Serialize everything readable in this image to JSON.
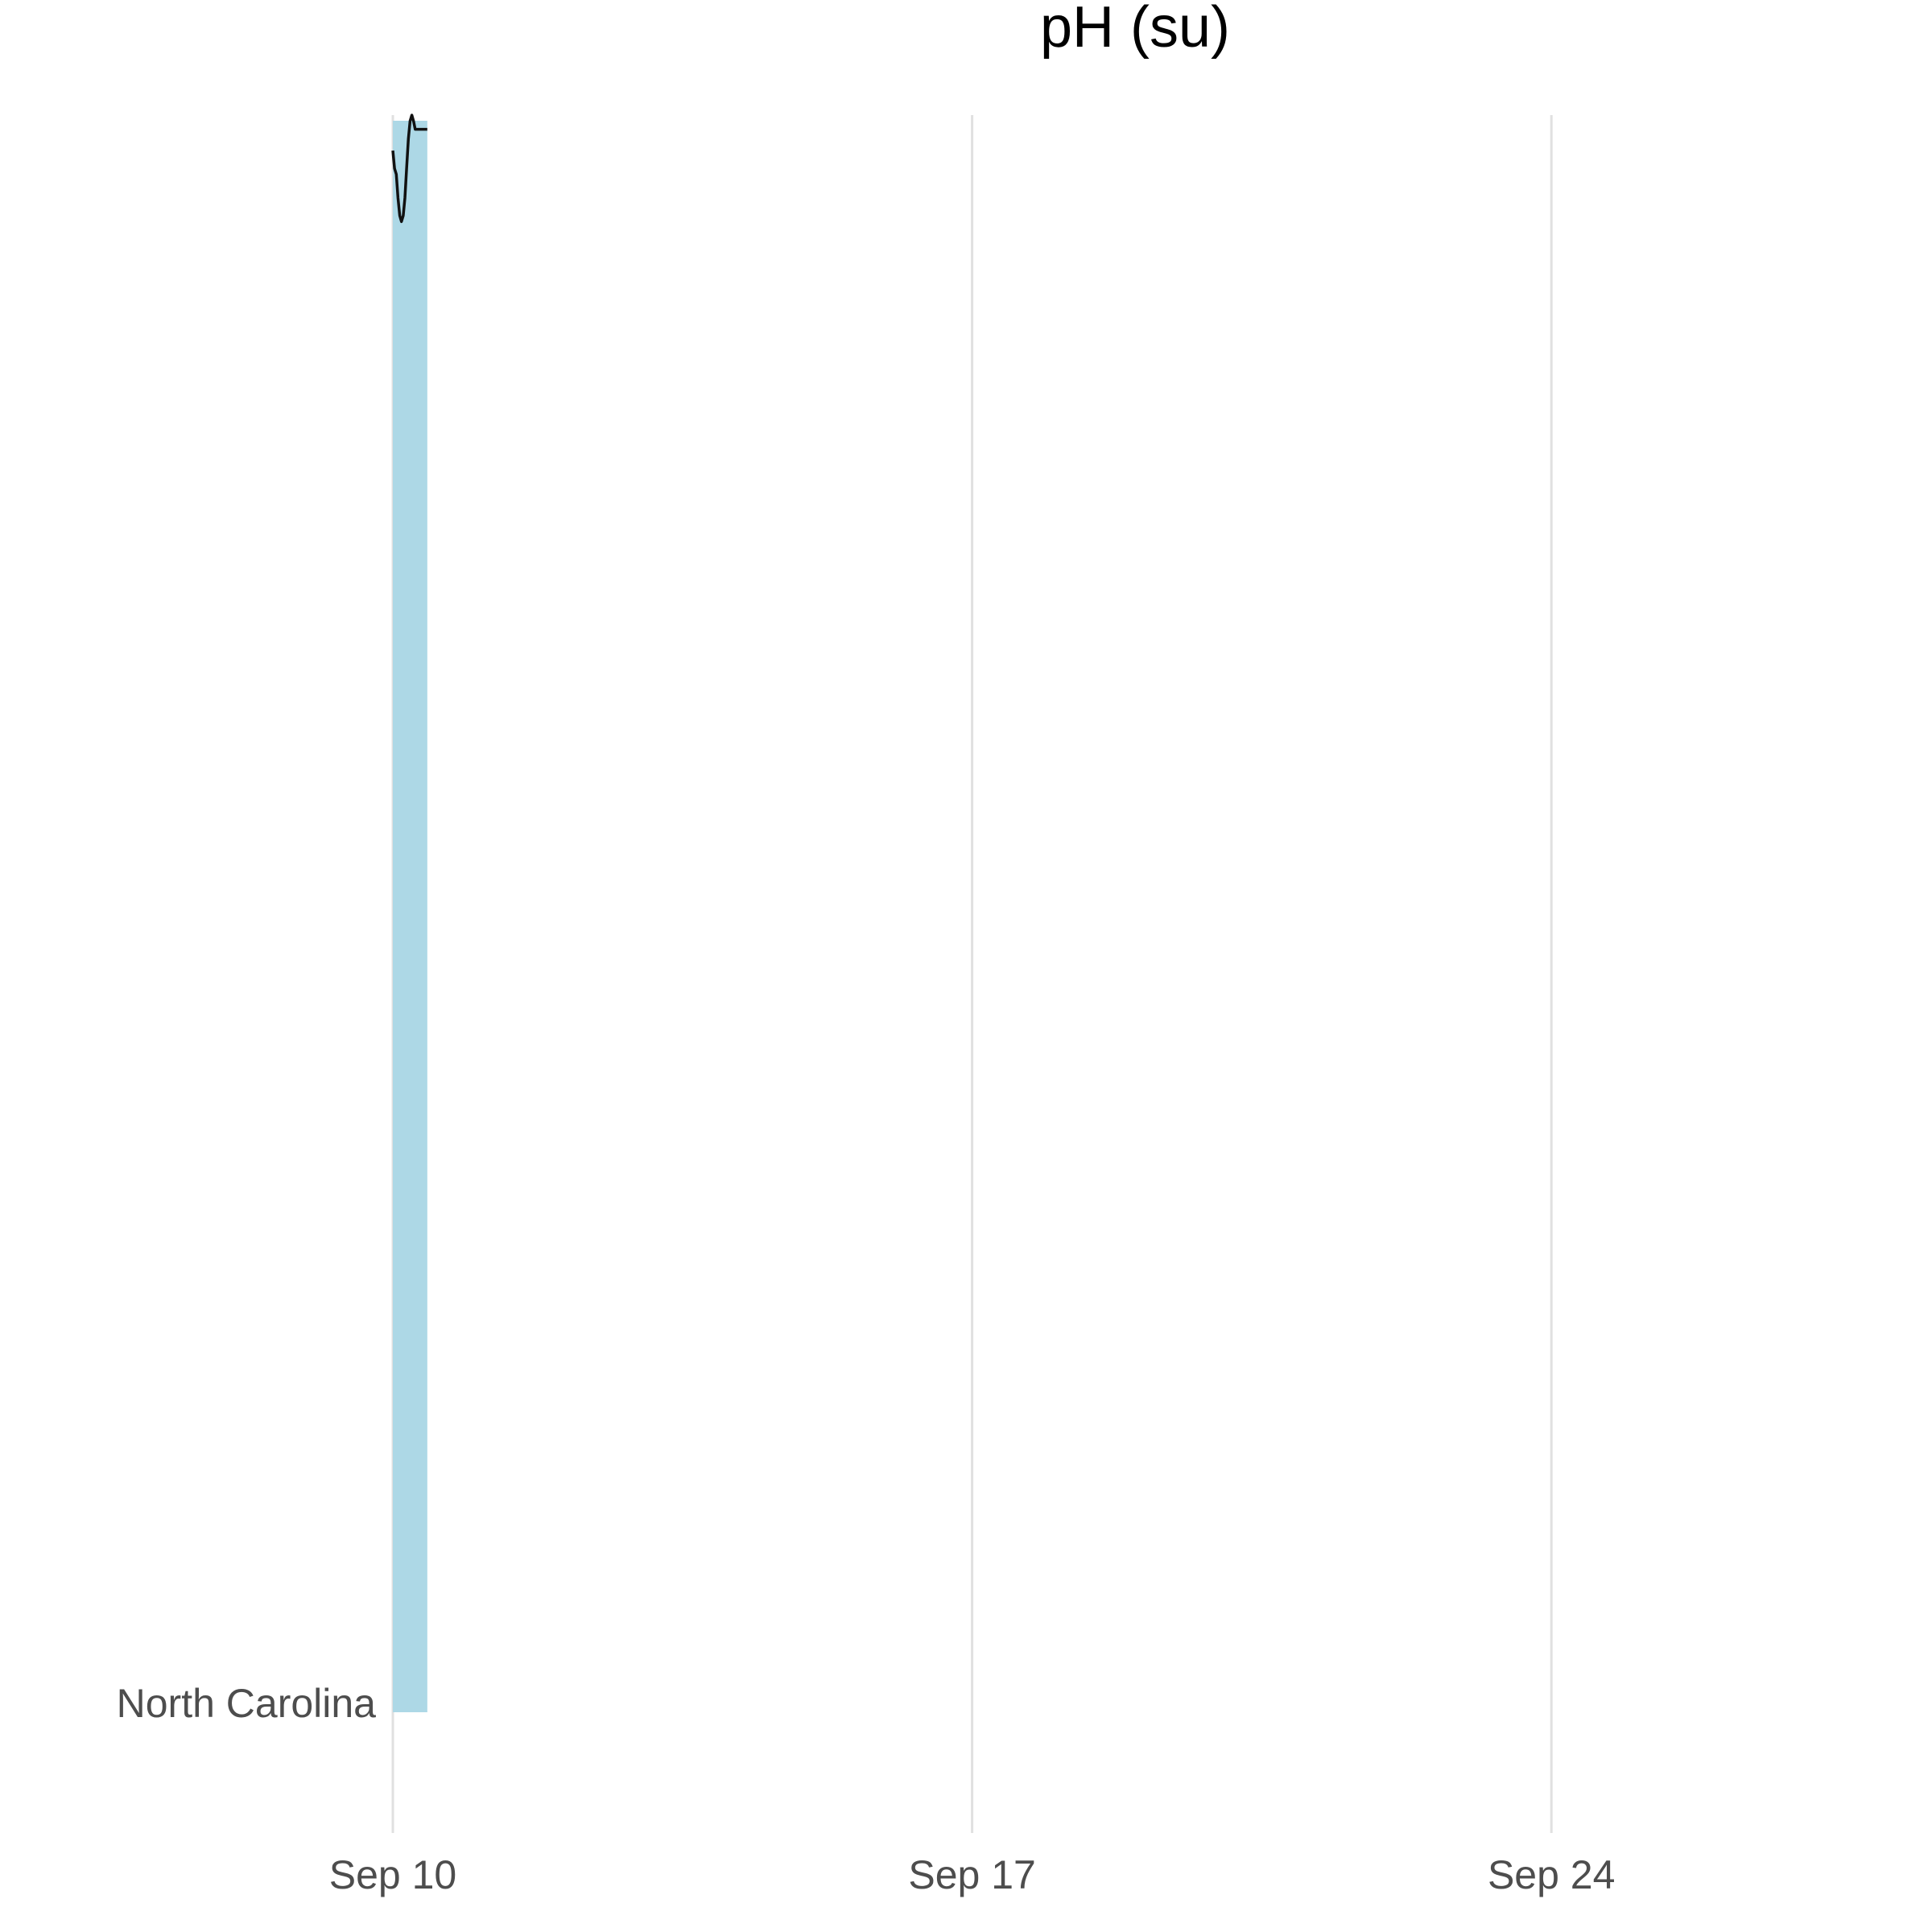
{
  "chart_data": {
    "type": "area",
    "title": "pH (su)",
    "xlabel": "",
    "ylabel": "",
    "category_label": "North Carolina",
    "x_ticks": [
      "Sep 10",
      "Sep 17",
      "Sep 24"
    ],
    "xlim": [
      "Sep 10",
      "Sep 28"
    ],
    "grid": "vertical",
    "shade": {
      "x_start": "Sep 10 00:00",
      "x_end": "Sep 10 10:00",
      "color": "#add8e6"
    },
    "series": [
      {
        "color": "#111111",
        "x": [
          "Sep 10 00:00",
          "Sep 10 00:30",
          "Sep 10 01:00",
          "Sep 10 01:30",
          "Sep 10 02:00",
          "Sep 10 02:30",
          "Sep 10 03:00",
          "Sep 10 03:30",
          "Sep 10 04:00",
          "Sep 10 04:30",
          "Sep 10 05:00",
          "Sep 10 05:30",
          "Sep 10 06:00",
          "Sep 10 06:30",
          "Sep 10 07:00",
          "Sep 10 07:30",
          "Sep 10 08:00",
          "Sep 10 09:00",
          "Sep 10 10:00"
        ],
        "y": [
          0.97,
          0.955,
          0.95,
          0.93,
          0.915,
          0.91,
          0.915,
          0.93,
          0.955,
          0.98,
          0.995,
          1.0,
          0.995,
          0.988,
          0.988,
          0.988,
          0.988,
          0.988,
          0.988
        ]
      }
    ]
  }
}
